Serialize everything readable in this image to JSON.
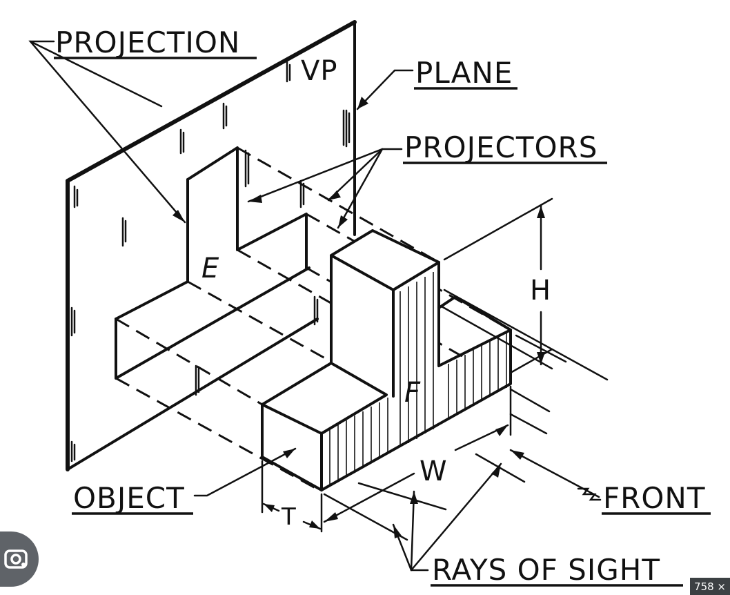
{
  "labels": {
    "projection": "PROJECTION",
    "plane": "PLANE",
    "projectors": "PROJECTORS",
    "object": "OBJECT",
    "front": "FRONT",
    "rays_of_sight": "RAYS OF SIGHT"
  },
  "plane_tag": "VP",
  "face_letters": {
    "e": "E",
    "f": "F"
  },
  "dimensions": {
    "height": "H",
    "width": "W",
    "thickness": "T"
  },
  "badge": {
    "size_text": "758 ×"
  },
  "icons": {
    "lens": "camera-lens-icon"
  },
  "colors": {
    "ink": "#111111",
    "background": "#ffffff",
    "overlay": "#5f6368"
  }
}
